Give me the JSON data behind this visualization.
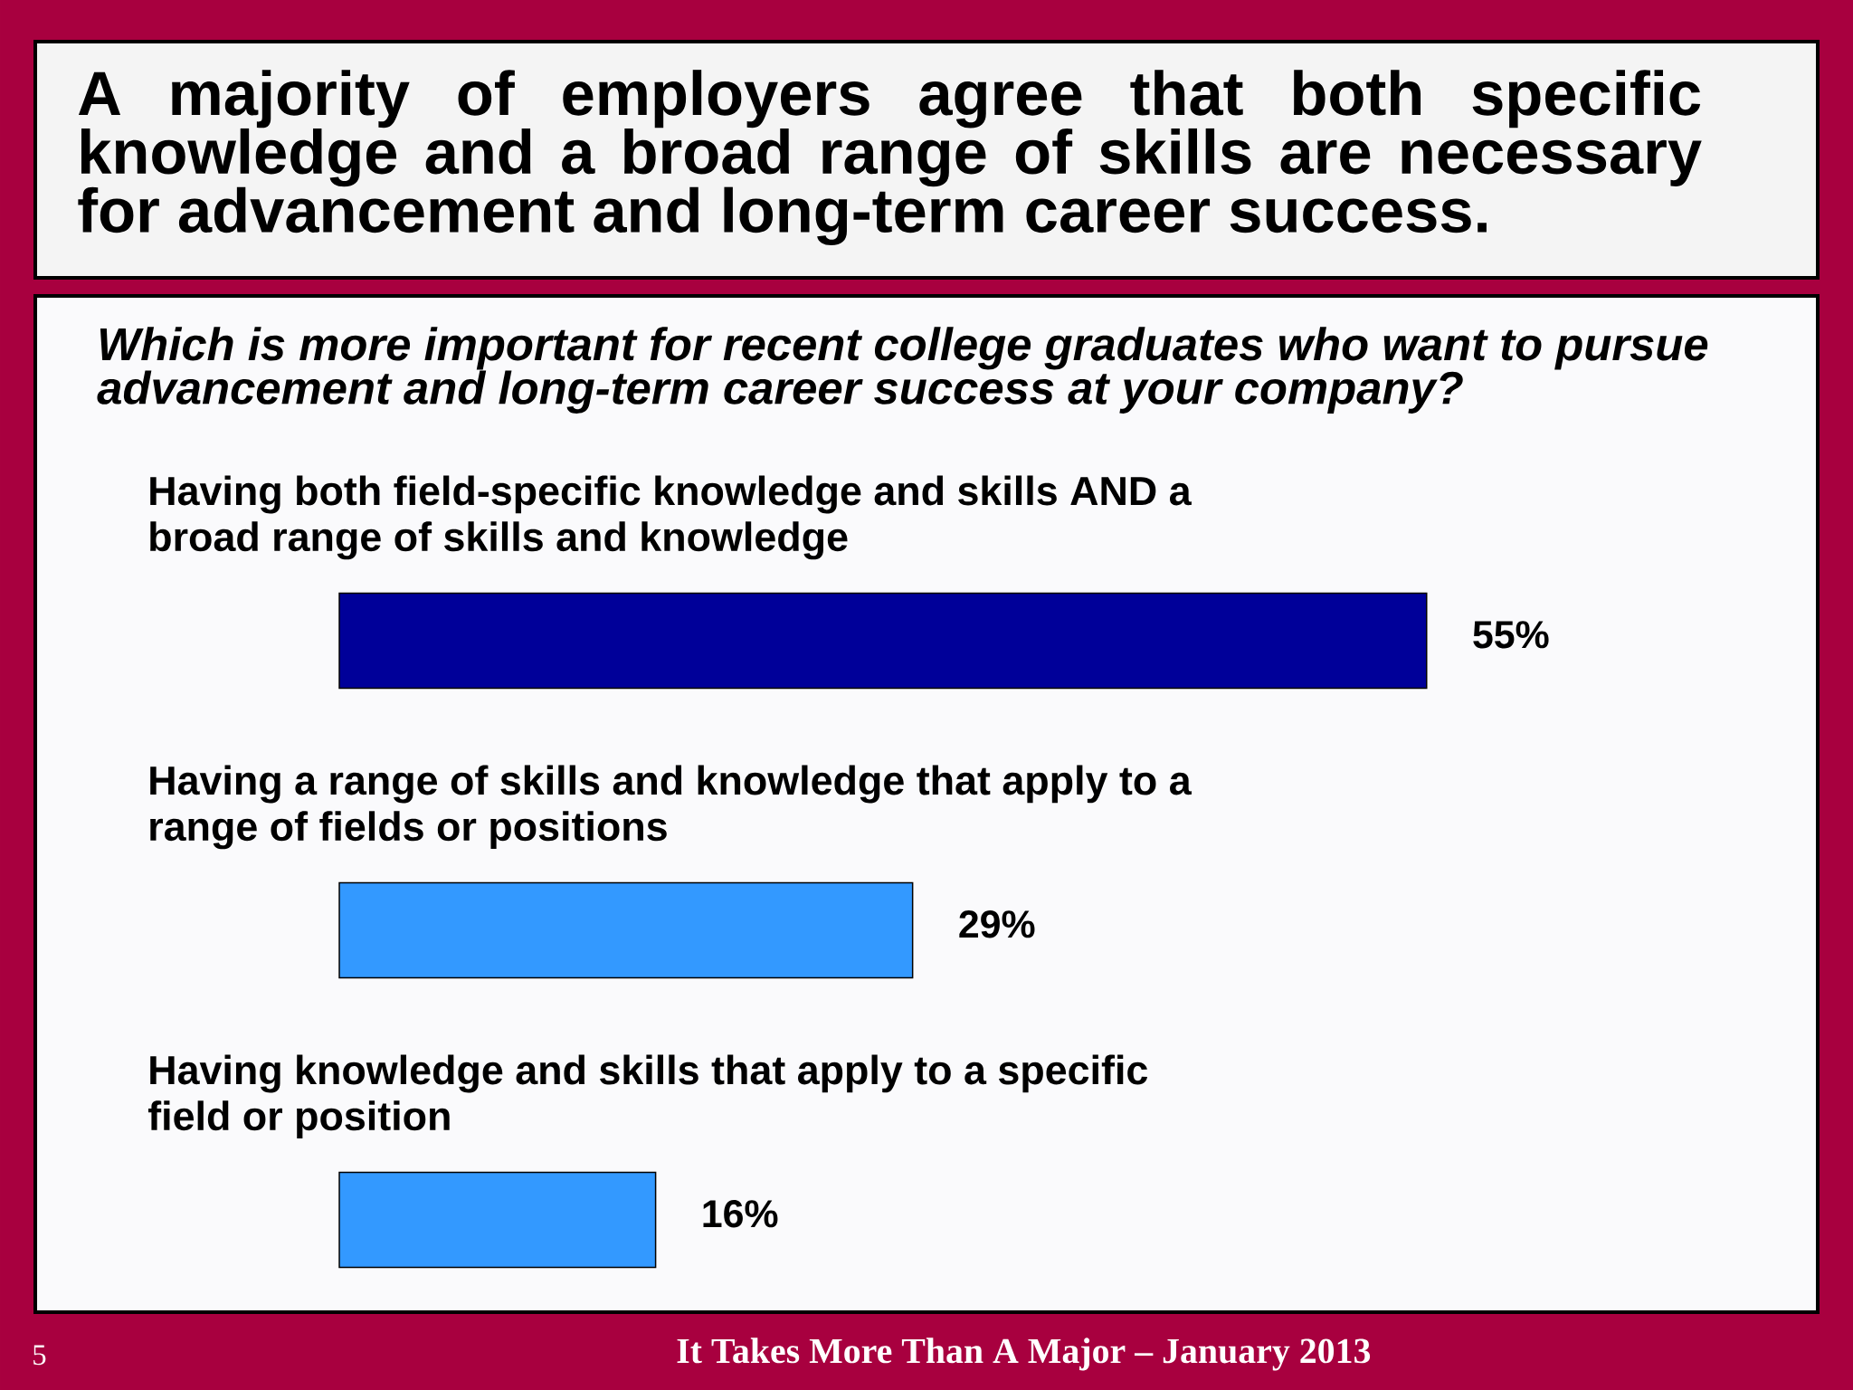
{
  "chart_data": {
    "type": "bar",
    "orientation": "horizontal",
    "title": "A majority of employers agree that both specific knowledge and a broad range of skills are necessary for advancement and long-term career success.",
    "subtitle": "Which is more important for recent college graduates who want to pursue advancement and long-term career success at your company?",
    "categories": [
      "Having both field-specific knowledge and skills AND a broad range of skills and knowledge",
      "Having a range of skills and knowledge that apply to a range of fields or positions",
      "Having knowledge and skills that apply to a specific field or position"
    ],
    "values": [
      55,
      29,
      16
    ],
    "colors": [
      "#000099",
      "#3399ff",
      "#3399ff"
    ],
    "value_labels": [
      "55%",
      "29%",
      "16%"
    ],
    "annotations": [
      "5",
      "It Takes More Than A Major – January 2013"
    ]
  }
}
